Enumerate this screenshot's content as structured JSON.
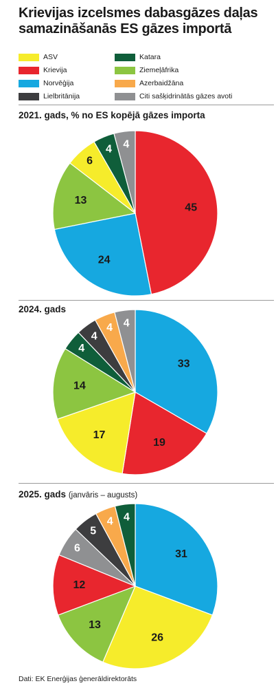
{
  "title": "Krievijas izcelsmes dabasgāzes daļas samazināšanās ES gāzes importā",
  "legend": [
    {
      "key": "asv",
      "label": "ASV",
      "color": "#f6ec2b"
    },
    {
      "key": "krievija",
      "label": "Krievija",
      "color": "#e8262e"
    },
    {
      "key": "norvegija",
      "label": "Norvēģija",
      "color": "#16a8e0"
    },
    {
      "key": "lielbritanija",
      "label": "Lielbritānija",
      "color": "#3d3d3f"
    },
    {
      "key": "katara",
      "label": "Katara",
      "color": "#0f5e3a"
    },
    {
      "key": "ziemelafrika",
      "label": "Ziemeļāfrika",
      "color": "#8cc541"
    },
    {
      "key": "azerbaidzana",
      "label": "Azerbaidžāna",
      "color": "#f8a94b"
    },
    {
      "key": "citi",
      "label": "Citi sašķidrinātās gāzes avoti",
      "color": "#8f9092"
    }
  ],
  "source": "Dati: EK Enerģijas ģenerāldirektorāts",
  "chart_data": [
    {
      "type": "pie",
      "title": "2021. gads, % no ES kopējā gāzes importa",
      "note": "",
      "slices": [
        {
          "key": "krievija",
          "value": 45
        },
        {
          "key": "norvegija",
          "value": 24
        },
        {
          "key": "ziemelafrika",
          "value": 13
        },
        {
          "key": "asv",
          "value": 6
        },
        {
          "key": "katara",
          "value": 4
        },
        {
          "key": "citi",
          "value": 4
        }
      ]
    },
    {
      "type": "pie",
      "title": "2024. gads",
      "note": "",
      "slices": [
        {
          "key": "norvegija",
          "value": 33
        },
        {
          "key": "krievija",
          "value": 19
        },
        {
          "key": "asv",
          "value": 17
        },
        {
          "key": "ziemelafrika",
          "value": 14
        },
        {
          "key": "katara",
          "value": 4
        },
        {
          "key": "lielbritanija",
          "value": 4
        },
        {
          "key": "azerbaidzana",
          "value": 4
        },
        {
          "key": "citi",
          "value": 4
        }
      ]
    },
    {
      "type": "pie",
      "title": "2025. gads",
      "note": "(janvāris – augusts)",
      "slices": [
        {
          "key": "norvegija",
          "value": 31
        },
        {
          "key": "asv",
          "value": 26
        },
        {
          "key": "ziemelafrika",
          "value": 13
        },
        {
          "key": "krievija",
          "value": 12
        },
        {
          "key": "citi",
          "value": 6
        },
        {
          "key": "lielbritanija",
          "value": 5
        },
        {
          "key": "azerbaidzana",
          "value": 4
        },
        {
          "key": "katara",
          "value": 4
        }
      ]
    }
  ]
}
